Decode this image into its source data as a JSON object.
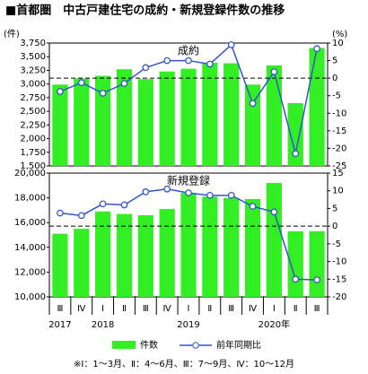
{
  "title": "■首都圏　中古戸建住宅の成約・新規登録件数の推移",
  "footnote": "※Ⅰ：1～3月、Ⅱ：4～6月、Ⅲ：7～9月、Ⅳ：10～12月",
  "chart_data": [
    {
      "type": "bar-line",
      "title": "成約",
      "y_label": "(件)",
      "y2_label": "(%)",
      "ylim": [
        1500,
        3750
      ],
      "yticks": [
        {
          "value": 1500,
          "label": "1,500"
        },
        {
          "value": 1750,
          "label": "1,750"
        },
        {
          "value": 2000,
          "label": "2,000"
        },
        {
          "value": 2250,
          "label": "2,250"
        },
        {
          "value": 2500,
          "label": "2,500"
        },
        {
          "value": 2750,
          "label": "2,750"
        },
        {
          "value": 3000,
          "label": "3,000"
        },
        {
          "value": 3250,
          "label": "3,250"
        },
        {
          "value": 3500,
          "label": "3,500"
        },
        {
          "value": 3750,
          "label": "3,750"
        }
      ],
      "y2lim": [
        -25,
        10
      ],
      "y2ticks": [
        -25,
        -20,
        -15,
        -10,
        -5,
        0,
        5,
        10
      ],
      "zero_line": true,
      "series": [
        {
          "name": "件数",
          "color": "#33ee22",
          "values": [
            2990,
            3100,
            3150,
            3270,
            3090,
            3230,
            3280,
            3390,
            3380,
            2990,
            3340,
            2650,
            3660
          ]
        },
        {
          "name": "前年同期比",
          "color": "#3355cc",
          "axis": "y2",
          "values": [
            -3.8,
            -1.3,
            -4.3,
            -1.5,
            3,
            5,
            5,
            4,
            9.5,
            -7.2,
            1.8,
            -21.5,
            8.4
          ]
        }
      ]
    },
    {
      "type": "bar-line",
      "title": "新規登録",
      "categories": [
        "Ⅲ",
        "Ⅳ",
        "Ⅰ",
        "Ⅱ",
        "Ⅲ",
        "Ⅳ",
        "Ⅰ",
        "Ⅱ",
        "Ⅲ",
        "Ⅳ",
        "Ⅰ",
        "Ⅱ",
        "Ⅲ"
      ],
      "year_labels": [
        "2017",
        null,
        "2018",
        null,
        null,
        null,
        "2019",
        null,
        null,
        null,
        "2020年",
        null,
        null
      ],
      "ylim": [
        10000,
        20000
      ],
      "yticks": [
        {
          "value": 10000,
          "label": "10,000"
        },
        {
          "value": 12000,
          "label": "12,000"
        },
        {
          "value": 14000,
          "label": "14,000"
        },
        {
          "value": 16000,
          "label": "16,000"
        },
        {
          "value": 18000,
          "label": "18,000"
        },
        {
          "value": 20000,
          "label": "20,000"
        }
      ],
      "y2lim": [
        -20,
        15
      ],
      "y2ticks": [
        -20,
        -15,
        -10,
        -5,
        0,
        5,
        10,
        15
      ],
      "zero_line": true,
      "series": [
        {
          "name": "件数",
          "color": "#33ee22",
          "values": [
            15100,
            15500,
            16900,
            16700,
            16600,
            17100,
            18400,
            18100,
            18000,
            17900,
            19200,
            15300,
            15300
          ]
        },
        {
          "name": "前年同期比",
          "color": "#3355cc",
          "axis": "y2",
          "values": [
            3.7,
            3,
            6.3,
            6,
            9.7,
            10.5,
            9.4,
            8.7,
            8.7,
            5.6,
            4,
            -15,
            -15.2
          ]
        }
      ]
    }
  ]
}
